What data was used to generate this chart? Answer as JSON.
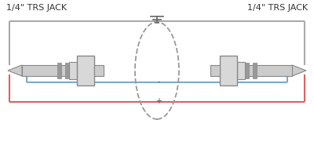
{
  "title_left": "1/4\" TRS JACK",
  "title_right": "1/4\" TRS JACK",
  "bg_color": "#ffffff",
  "wire_gray_color": "#aaaaaa",
  "wire_red_color": "#e06060",
  "wire_blue_color": "#7aaad0",
  "ellipse_color": "#999999",
  "text_color": "#555555",
  "label_minus": "-",
  "label_plus": "+",
  "jack_body_color": "#d8d8d8",
  "jack_edge_color": "#888888",
  "jack_ring_color": "#999999",
  "jack_shaft_color": "#cccccc",
  "jack_tip_color": "#c8c8c8"
}
